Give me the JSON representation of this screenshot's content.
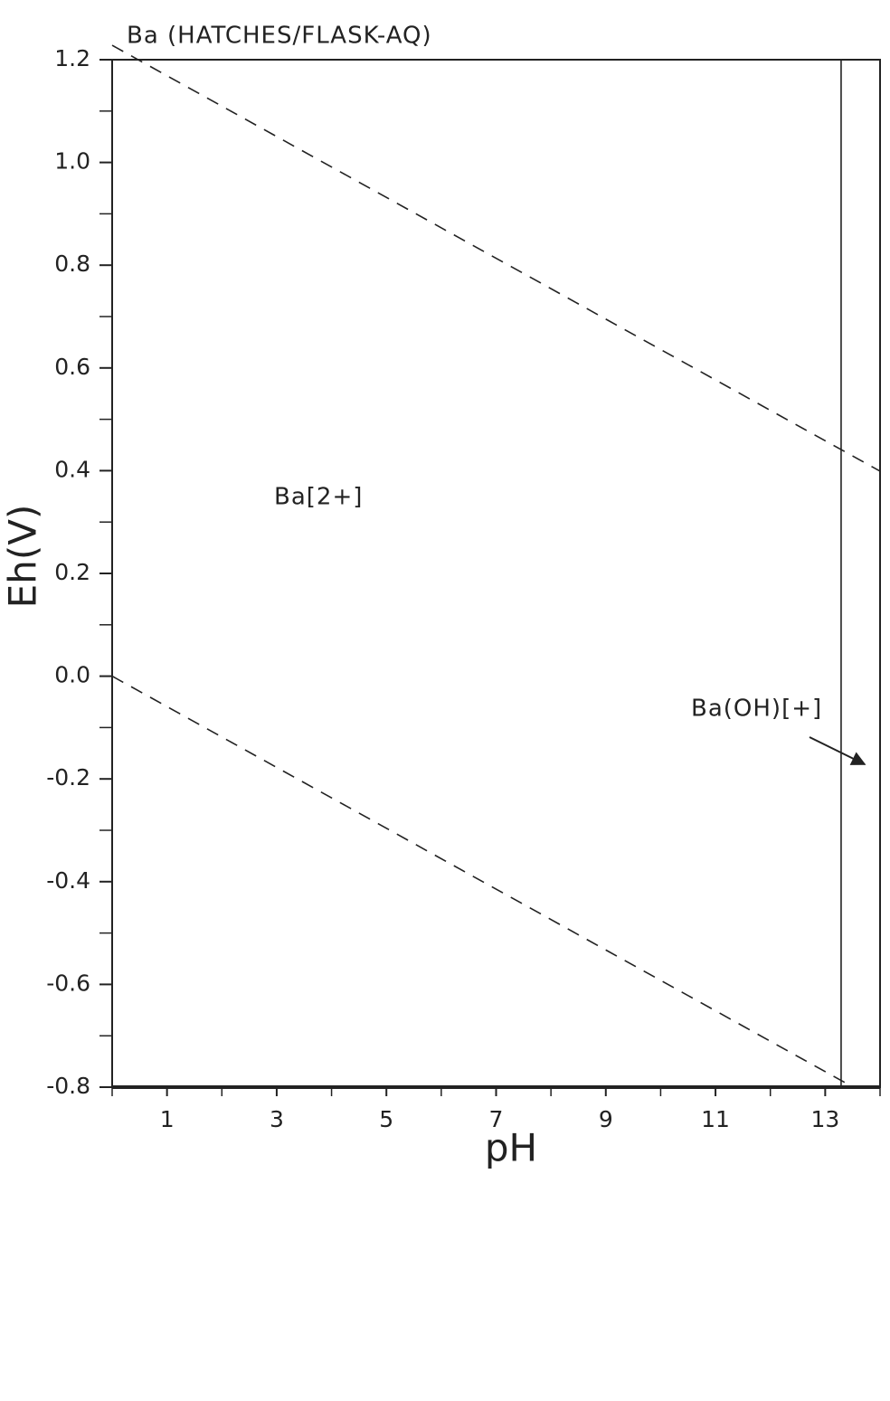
{
  "chart_data": {
    "type": "line",
    "title": "Ba (HATCHES/FLASK-AQ)",
    "x_label": "pH",
    "y_label": "Eh(V)",
    "xlim": [
      0,
      14
    ],
    "ylim": [
      -0.8,
      1.2
    ],
    "xticks": [
      1,
      3,
      5,
      7,
      9,
      11,
      13
    ],
    "xminorticks": [
      0,
      2,
      4,
      6,
      8,
      10,
      12,
      14
    ],
    "yticks": [
      {
        "value": -0.8,
        "label": "-0.8"
      },
      -0.6,
      -0.4,
      -0.2,
      {
        "value": 0,
        "label": "0.0"
      },
      0.2,
      0.4,
      0.6,
      0.8,
      {
        "value": 1,
        "label": "1.0"
      },
      1.2
    ],
    "yminorticks": [
      -0.7,
      -0.5,
      -0.3,
      -0.1,
      0.1,
      0.3,
      0.5,
      0.7,
      0.9,
      1.1
    ],
    "grid": false,
    "series": [
      {
        "color": "#222222",
        "dash": "dashed",
        "x": [
          0,
          14
        ],
        "values": [
          1.228,
          0.399
        ]
      },
      {
        "color": "#222222",
        "dash": "dashed",
        "x": [
          0,
          13.51
        ],
        "values": [
          0,
          -0.8
        ]
      },
      {
        "color": "#222222",
        "dash": "solid",
        "x": [
          13.29,
          13.29
        ],
        "values": [
          -0.8,
          1.2
        ]
      }
    ],
    "annotations": [
      "Ba[2+]",
      "Ba(OH)[+]"
    ]
  }
}
